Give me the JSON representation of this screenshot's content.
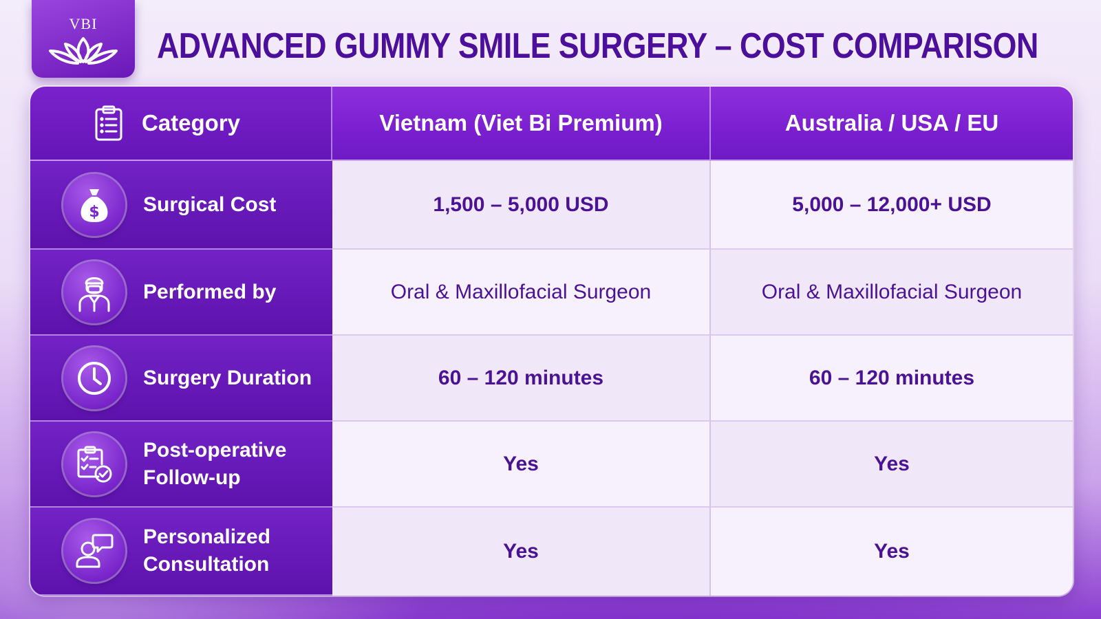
{
  "logo": {
    "text": "VBI",
    "icon": "lotus-icon"
  },
  "title": "ADVANCED GUMMY SMILE SURGERY – COST COMPARISON",
  "table": {
    "headers": [
      "Category",
      "Vietnam (Viet Bi Premium)",
      "Australia / USA / EU"
    ],
    "header_icon": "clipboard-list-icon",
    "rows": [
      {
        "icon": "money-bag-icon",
        "category": "Surgical Cost",
        "vietnam": "1,500 – 5,000 USD",
        "abroad": "5,000 – 12,000+ USD"
      },
      {
        "icon": "surgeon-icon",
        "category": "Performed by",
        "vietnam": "Oral & Maxillofacial Surgeon",
        "abroad": "Oral & Maxillofacial Surgeon"
      },
      {
        "icon": "clock-icon",
        "category": "Surgery Duration",
        "vietnam": "60 – 120 minutes",
        "abroad": "60 – 120 minutes"
      },
      {
        "icon": "checklist-icon",
        "category_line1": "Post-operative",
        "category_line2": "Follow-up",
        "vietnam": "Yes",
        "abroad": "Yes"
      },
      {
        "icon": "consultation-icon",
        "category_line1": "Personalized",
        "category_line2": "Consultation",
        "vietnam": "Yes",
        "abroad": "Yes"
      }
    ]
  },
  "colors": {
    "title": "#4b0f9c",
    "header": "#7a1fd0",
    "category": "#5d12ac",
    "cell_text": "#4a1294"
  }
}
